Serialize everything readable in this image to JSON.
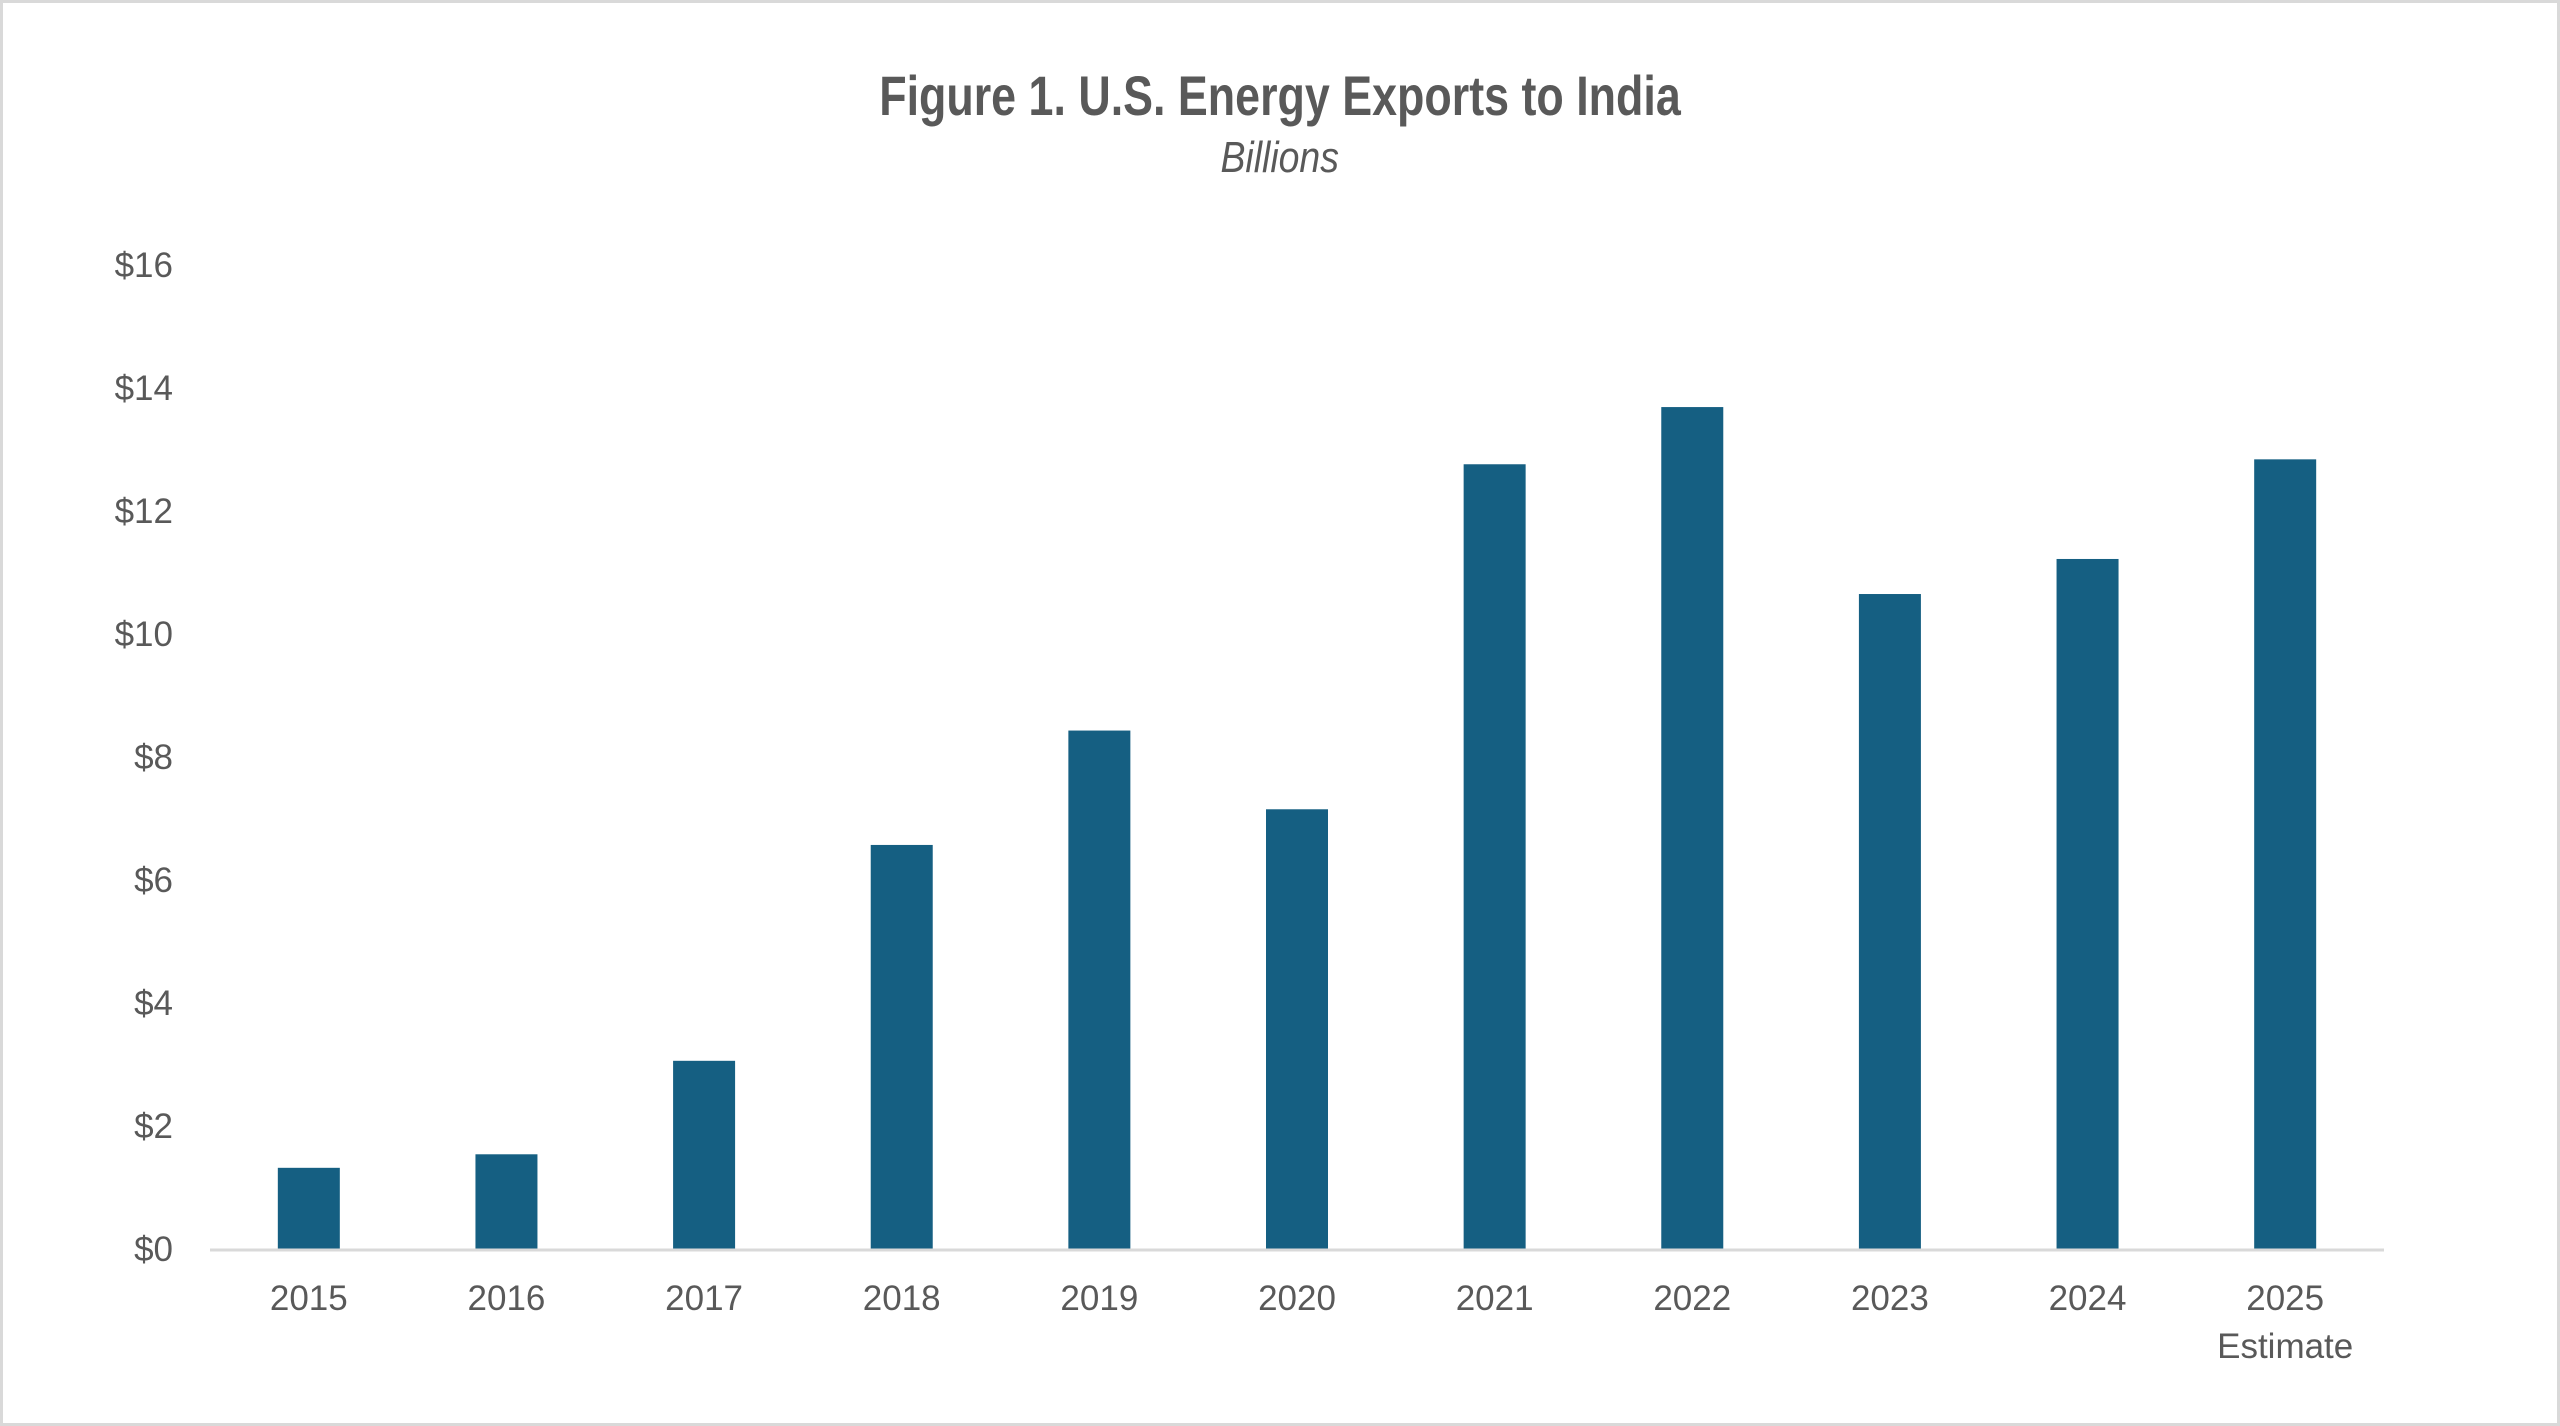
{
  "chart_data": {
    "type": "bar",
    "title": "Figure 1. U.S. Energy Exports to India",
    "subtitle": "Billions",
    "xlabel": "",
    "ylabel": "",
    "categories": [
      "2015",
      "2016",
      "2017",
      "2018",
      "2019",
      "2020",
      "2021",
      "2022",
      "2023",
      "2024",
      "2025"
    ],
    "category_sublabels": [
      "",
      "",
      "",
      "",
      "",
      "",
      "",
      "",
      "",
      "",
      "Estimate"
    ],
    "values": [
      1.32,
      1.54,
      3.06,
      6.57,
      8.43,
      7.15,
      12.76,
      13.69,
      10.65,
      11.22,
      12.84
    ],
    "ylim": [
      0,
      16
    ],
    "yticks": [
      0,
      2,
      4,
      6,
      8,
      10,
      12,
      14,
      16
    ],
    "ytick_labels": [
      "$0",
      "$2",
      "$4",
      "$6",
      "$8",
      "$10",
      "$12",
      "$14",
      "$16"
    ],
    "grid": false,
    "legend": "none",
    "colors": {
      "bar": "#155f82",
      "axis": "#d9d9d9",
      "text": "#595959",
      "border": "#d9d9d9"
    }
  }
}
